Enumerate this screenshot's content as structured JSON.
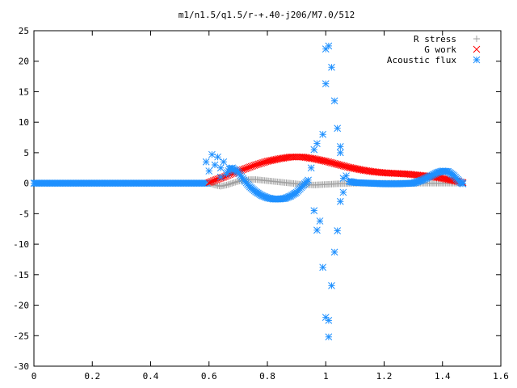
{
  "chart_data": {
    "type": "scatter",
    "title": "m1/n1.5/q1.5/r-+.40-j206/M7.0/512",
    "xlabel": "",
    "ylabel": "",
    "xlim": [
      0,
      1.6
    ],
    "ylim": [
      -30,
      25
    ],
    "xticks": [
      "0",
      "0.2",
      "0.4",
      "0.6",
      "0.8",
      "1",
      "1.2",
      "1.4",
      "1.6"
    ],
    "yticks": [
      "-30",
      "-25",
      "-20",
      "-15",
      "-10",
      "-5",
      "0",
      "5",
      "10",
      "15",
      "20",
      "25"
    ],
    "xtick_values": [
      0,
      0.2,
      0.4,
      0.6,
      0.8,
      1.0,
      1.2,
      1.4,
      1.6
    ],
    "ytick_values": [
      -30,
      -25,
      -20,
      -15,
      -10,
      -5,
      0,
      5,
      10,
      15,
      20,
      25
    ],
    "grid": false,
    "legend_position": "top-right",
    "series": [
      {
        "name": "R stress",
        "marker": "plus",
        "color": "#a0a0a0",
        "points": [
          [
            0.6,
            0
          ],
          [
            0.62,
            -0.3
          ],
          [
            0.64,
            -0.5
          ],
          [
            0.66,
            -0.3
          ],
          [
            0.68,
            0
          ],
          [
            0.7,
            0.3
          ],
          [
            0.72,
            0.5
          ],
          [
            0.74,
            0.6
          ],
          [
            0.76,
            0.6
          ],
          [
            0.78,
            0.5
          ],
          [
            0.8,
            0.4
          ],
          [
            0.84,
            0.2
          ],
          [
            0.88,
            0
          ],
          [
            0.92,
            -0.2
          ],
          [
            0.96,
            -0.3
          ],
          [
            1.0,
            -0.2
          ],
          [
            1.04,
            -0.1
          ],
          [
            1.1,
            0
          ],
          [
            1.2,
            0
          ],
          [
            1.3,
            0
          ],
          [
            1.4,
            0
          ],
          [
            1.46,
            0
          ]
        ]
      },
      {
        "name": "G work",
        "marker": "x",
        "color": "#ff0000",
        "points": [
          [
            0.6,
            0.1
          ],
          [
            0.62,
            0.5
          ],
          [
            0.65,
            1.0
          ],
          [
            0.68,
            1.6
          ],
          [
            0.72,
            2.3
          ],
          [
            0.76,
            3.0
          ],
          [
            0.8,
            3.6
          ],
          [
            0.84,
            4.0
          ],
          [
            0.88,
            4.3
          ],
          [
            0.92,
            4.3
          ],
          [
            0.96,
            4.0
          ],
          [
            1.0,
            3.6
          ],
          [
            1.04,
            3.1
          ],
          [
            1.08,
            2.6
          ],
          [
            1.12,
            2.2
          ],
          [
            1.16,
            1.9
          ],
          [
            1.2,
            1.7
          ],
          [
            1.24,
            1.6
          ],
          [
            1.28,
            1.5
          ],
          [
            1.32,
            1.3
          ],
          [
            1.36,
            1.1
          ],
          [
            1.4,
            0.8
          ],
          [
            1.44,
            0.4
          ],
          [
            1.47,
            0.1
          ]
        ]
      },
      {
        "name": "Acoustic flux",
        "marker": "asterisk",
        "color": "#1e90ff",
        "points": [
          [
            0.59,
            3.5
          ],
          [
            0.6,
            2.0
          ],
          [
            0.61,
            4.7
          ],
          [
            0.62,
            3.0
          ],
          [
            0.63,
            4.3
          ],
          [
            0.64,
            2.5
          ],
          [
            0.65,
            3.5
          ],
          [
            0.64,
            1.0
          ],
          [
            0.66,
            1.5
          ],
          [
            0.67,
            2.3
          ],
          [
            0.68,
            2.5
          ],
          [
            0.7,
            1.8
          ],
          [
            0.72,
            0.5
          ],
          [
            0.74,
            -0.6
          ],
          [
            0.76,
            -1.4
          ],
          [
            0.78,
            -2.0
          ],
          [
            0.8,
            -2.4
          ],
          [
            0.82,
            -2.6
          ],
          [
            0.84,
            -2.6
          ],
          [
            0.86,
            -2.5
          ],
          [
            0.88,
            -2.1
          ],
          [
            0.9,
            -1.5
          ],
          [
            0.92,
            -0.5
          ],
          [
            0.94,
            0.5
          ],
          [
            0.95,
            2.5
          ],
          [
            0.96,
            -4.5
          ],
          [
            0.96,
            5.5
          ],
          [
            0.97,
            -7.7
          ],
          [
            0.97,
            6.5
          ],
          [
            0.98,
            -6.2
          ],
          [
            0.99,
            8.0
          ],
          [
            0.99,
            -13.8
          ],
          [
            1.0,
            16.3
          ],
          [
            1.0,
            -22.0
          ],
          [
            1.0,
            22.0
          ],
          [
            1.01,
            22.5
          ],
          [
            1.01,
            -25.2
          ],
          [
            1.01,
            -22.5
          ],
          [
            1.02,
            19.0
          ],
          [
            1.02,
            -16.8
          ],
          [
            1.03,
            13.5
          ],
          [
            1.03,
            -11.3
          ],
          [
            1.04,
            9.0
          ],
          [
            1.04,
            -7.8
          ],
          [
            1.05,
            6.0
          ],
          [
            1.05,
            5.0
          ],
          [
            1.05,
            -3.0
          ],
          [
            1.06,
            -1.5
          ],
          [
            1.06,
            0.8
          ],
          [
            1.07,
            1.2
          ],
          [
            1.08,
            0.3
          ],
          [
            1.1,
            0.1
          ],
          [
            1.15,
            0
          ],
          [
            1.2,
            -0.1
          ],
          [
            1.25,
            -0.1
          ],
          [
            1.3,
            0
          ],
          [
            1.33,
            0.5
          ],
          [
            1.36,
            1.2
          ],
          [
            1.38,
            1.7
          ],
          [
            1.4,
            2.0
          ],
          [
            1.42,
            1.9
          ],
          [
            1.44,
            1.2
          ],
          [
            1.46,
            0.2
          ],
          [
            1.47,
            -0.1
          ]
        ]
      }
    ]
  }
}
